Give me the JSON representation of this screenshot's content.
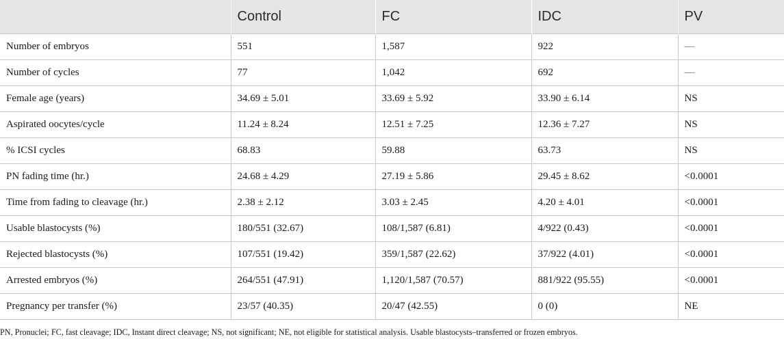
{
  "table": {
    "headers": [
      "",
      "Control",
      "FC",
      "IDC",
      "PV"
    ],
    "rows": [
      [
        "Number of embryos",
        "551",
        "1,587",
        "922",
        "—"
      ],
      [
        "Number of cycles",
        "77",
        "1,042",
        "692",
        "—"
      ],
      [
        "Female age (years)",
        "34.69 ± 5.01",
        "33.69 ± 5.92",
        "33.90 ± 6.14",
        "NS"
      ],
      [
        "Aspirated oocytes/cycle",
        "11.24 ± 8.24",
        "12.51 ± 7.25",
        "12.36 ± 7.27",
        "NS"
      ],
      [
        "% ICSI cycles",
        "68.83",
        "59.88",
        "63.73",
        "NS"
      ],
      [
        "PN fading time (hr.)",
        "24.68 ± 4.29",
        "27.19 ± 5.86",
        "29.45 ± 8.62",
        "<0.0001"
      ],
      [
        "Time from fading to cleavage (hr.)",
        "2.38 ± 2.12",
        "3.03 ± 2.45",
        "4.20 ± 4.01",
        "<0.0001"
      ],
      [
        "Usable blastocysts (%)",
        "180/551 (32.67)",
        "108/1,587 (6.81)",
        "4/922 (0.43)",
        "<0.0001"
      ],
      [
        "Rejected blastocysts (%)",
        "107/551 (19.42)",
        "359/1,587 (22.62)",
        "37/922 (4.01)",
        "<0.0001"
      ],
      [
        "Arrested embryos (%)",
        "264/551 (47.91)",
        "1,120/1,587 (70.57)",
        "881/922 (95.55)",
        "<0.0001"
      ],
      [
        "Pregnancy per transfer (%)",
        "23/57 (40.35)",
        "20/47 (42.55)",
        "0 (0)",
        "NE"
      ]
    ]
  },
  "footnote": "PN, Pronuclei; FC, fast cleavage; IDC, Instant direct cleavage; NS, not significant; NE, not eligible for statistical analysis. Usable blastocysts–transferred or frozen embryos.",
  "colors": {
    "header_bg": "#e5e5e5",
    "rule": "#c8c8c8",
    "text": "#1a1a1a"
  }
}
